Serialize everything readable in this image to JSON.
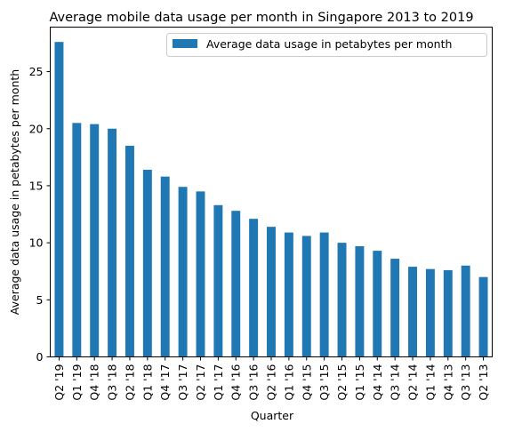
{
  "chart_data": {
    "type": "bar",
    "title": "Average mobile data usage per month in Singapore 2013 to 2019",
    "xlabel": "Quarter",
    "ylabel": "Average data usage in petabytes per month",
    "legend_label": "Average data usage in petabytes per month",
    "legend_position": "top-right",
    "grid": false,
    "ylim": [
      0,
      28.9
    ],
    "yticks": [
      0,
      5,
      10,
      15,
      20,
      25
    ],
    "color": "#1f77b4",
    "categories": [
      "Q2 '19",
      "Q1 '19",
      "Q4 '18",
      "Q3 '18",
      "Q2 '18",
      "Q1 '18",
      "Q4 '17",
      "Q3 '17",
      "Q2 '17",
      "Q1 '17",
      "Q4 '16",
      "Q3 '16",
      "Q2 '16",
      "Q1 '16",
      "Q4 '15",
      "Q3 '15",
      "Q2 '15",
      "Q1 '15",
      "Q4 '14",
      "Q3 '14",
      "Q2 '14",
      "Q1 '14",
      "Q4 '13",
      "Q3 '13",
      "Q2 '13"
    ],
    "values": [
      27.6,
      20.5,
      20.4,
      20.0,
      18.5,
      16.4,
      15.8,
      14.9,
      14.5,
      13.3,
      12.8,
      12.1,
      11.4,
      10.9,
      10.6,
      10.9,
      10.0,
      9.7,
      9.3,
      8.6,
      7.9,
      7.7,
      7.6,
      8.0,
      7.0
    ]
  }
}
